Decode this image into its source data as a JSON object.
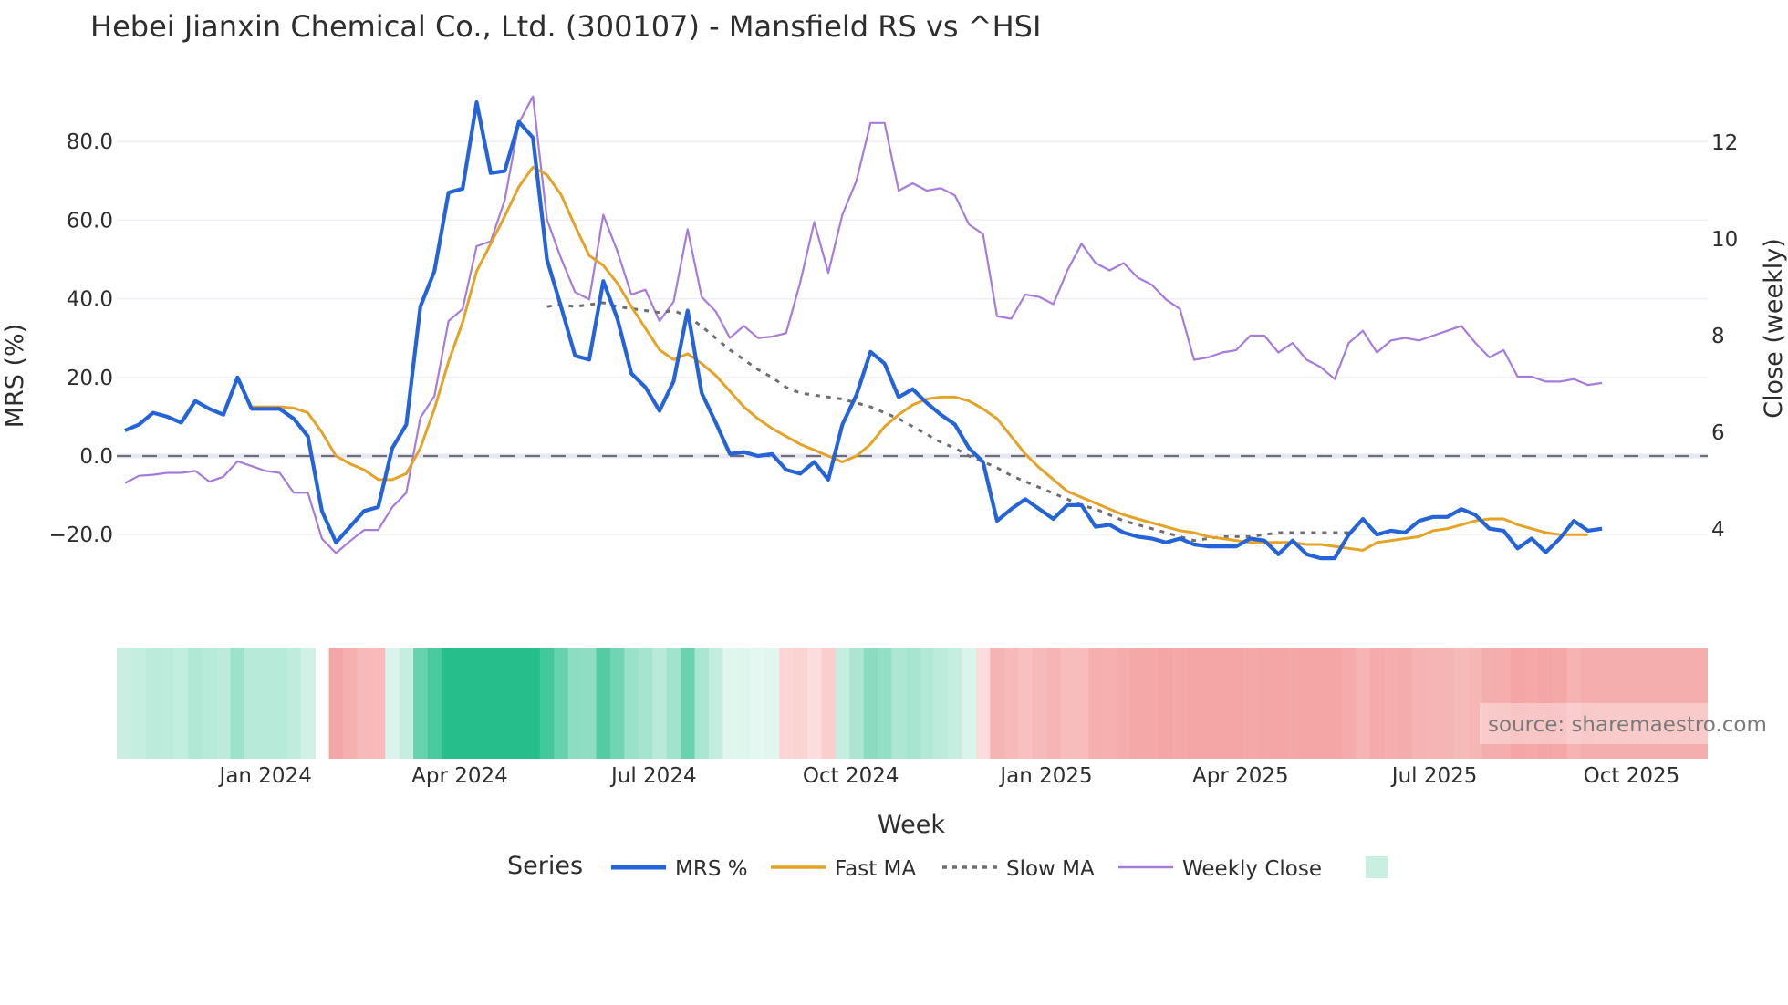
{
  "title": "Hebei Jianxin Chemical Co., Ltd. (300107) - Mansfield RS vs ^HSI",
  "y_left_title": "MRS (%)",
  "y_right_title": "Close (weekly)",
  "x_title": "Week",
  "legend": {
    "title": "Series",
    "items": [
      {
        "label": "MRS %",
        "color": "#2563d8",
        "style": "solid-thick"
      },
      {
        "label": "Fast MA",
        "color": "#e5a326",
        "style": "solid"
      },
      {
        "label": "Slow MA",
        "color": "#6e6e6e",
        "style": "dotted"
      },
      {
        "label": "Weekly Close",
        "color": "#a77bdb",
        "style": "solid-thin"
      },
      {
        "label": "",
        "color": "#c9efe0",
        "style": "swatch"
      }
    ]
  },
  "source": "source: sharemaestro.com",
  "colors": {
    "mrs": "#2563d8",
    "fast": "#e5a326",
    "slow": "#6e6e6e",
    "close": "#a77bdb",
    "zero": "#6e6e7a",
    "grid": "#eceef3",
    "pos": "#26bf8c",
    "neg": "#f4a6a6"
  },
  "chart_data": {
    "type": "line",
    "title": "Hebei Jianxin Chemical Co., Ltd. (300107) - Mansfield RS vs ^HSI",
    "xlabel": "Week",
    "ylabel": "MRS (%)",
    "ylabel_right": "Close (weekly)",
    "ylim": [
      -30,
      92
    ],
    "ylim_right": [
      3.2,
      13.2
    ],
    "y_ticks": [
      "−20.0",
      "0.0",
      "20.0",
      "40.0",
      "60.0",
      "80.0"
    ],
    "y_tick_values": [
      -20,
      0,
      20,
      40,
      60,
      80
    ],
    "y_right_ticks": [
      "4",
      "6",
      "8",
      "10",
      "12"
    ],
    "y_right_tick_values": [
      4,
      6,
      8,
      10,
      12
    ],
    "x_ticks": [
      "Jan 2024",
      "Apr 2024",
      "Jul 2024",
      "Oct 2024",
      "Jan 2025",
      "Apr 2025",
      "Jul 2025",
      "Oct 2025"
    ],
    "x_tick_index": [
      10.0,
      23.8,
      37.6,
      51.6,
      65.5,
      79.3,
      93.1,
      107.1
    ],
    "grid": true,
    "legend_position": "bottom",
    "zero_line": 0,
    "series": [
      {
        "name": "MRS %",
        "axis": "left",
        "values": [
          6.5,
          8,
          11,
          10,
          8.5,
          14,
          12,
          10.5,
          20,
          12,
          12,
          12,
          9.5,
          5,
          -14,
          -22,
          -18,
          -14,
          -13,
          2,
          8,
          38,
          47,
          67,
          68,
          90,
          72,
          72.5,
          85,
          81,
          50,
          38,
          25.5,
          24.5,
          44.5,
          35,
          21,
          17.5,
          11.5,
          19,
          37,
          16,
          8.5,
          0.5,
          1,
          0,
          0.5,
          -3.5,
          -4.5,
          -1.5,
          -6,
          8,
          15.5,
          26.5,
          23.5,
          15,
          17,
          13.5,
          10.5,
          8,
          2,
          -1.5,
          -16.5,
          -13.5,
          -11,
          -13.5,
          -16,
          -12.5,
          -12.5,
          -18,
          -17.5,
          -19.5,
          -20.5,
          -21,
          -22,
          -21,
          -22.5,
          -23,
          -23,
          -23,
          -21,
          -21.5,
          -25,
          -21.5,
          -25,
          -26,
          -26,
          -20,
          -16,
          -20,
          -19,
          -19.5,
          -16.5,
          -15.5,
          -15.5,
          -13.5,
          -15,
          -18.5,
          -19,
          -23.5,
          -21,
          -24.5,
          -21,
          -16.5,
          -19,
          -18.5
        ]
      },
      {
        "name": "Fast MA",
        "axis": "left",
        "start_index": 9,
        "values": [
          12.5,
          12.5,
          12.5,
          12.2,
          11,
          6,
          0,
          -2,
          -3.5,
          -6,
          -6,
          -4.5,
          2,
          12,
          24,
          34,
          47,
          54,
          61,
          68.5,
          73.5,
          71.5,
          66.5,
          58.5,
          51,
          48.5,
          44,
          38,
          32.5,
          27,
          24.5,
          26,
          23.5,
          20.5,
          16.5,
          12.5,
          9.5,
          7,
          5,
          3,
          1.5,
          0,
          -1.5,
          0,
          3,
          7.5,
          10.5,
          13,
          14.5,
          15,
          15,
          14,
          12,
          9.5,
          5,
          0.5,
          -3,
          -6,
          -9,
          -10.5,
          -12,
          -13.5,
          -15,
          -16,
          -17,
          -18,
          -19,
          -19.5,
          -20.5,
          -21,
          -21.5,
          -22,
          -22,
          -22,
          -22,
          -22.5,
          -22.5,
          -23,
          -23.5,
          -24,
          -22,
          -21.5,
          -21,
          -20.5,
          -19,
          -18.5,
          -17.5,
          -16.5,
          -16,
          -16,
          -17.5,
          -18.5,
          -19.5,
          -20,
          -20,
          -20
        ]
      },
      {
        "name": "Slow MA",
        "axis": "left",
        "start_index": 30,
        "values": [
          38,
          38.5,
          38,
          38.5,
          39,
          38,
          37.5,
          37,
          36.5,
          37,
          35.5,
          33,
          30,
          27,
          24.5,
          22,
          20,
          17.5,
          16,
          15.5,
          15,
          14.5,
          13.5,
          12.5,
          11,
          9.5,
          7.5,
          5.5,
          3.5,
          2,
          0,
          -1.5,
          -3,
          -5,
          -6.5,
          -8,
          -9.5,
          -11,
          -12.5,
          -13.5,
          -15,
          -16.5,
          -17.5,
          -18.5,
          -19.5,
          -20.5,
          -21.5,
          -21,
          -20.5,
          -20.5,
          -20.5,
          -20,
          -19.5,
          -19.5,
          -19.5,
          -19.5,
          -19.5,
          -19.5
        ]
      },
      {
        "name": "Weekly Close",
        "axis": "right",
        "values": [
          4.95,
          5.1,
          5.12,
          5.16,
          5.16,
          5.2,
          4.98,
          5.08,
          5.4,
          5.3,
          5.2,
          5.16,
          4.75,
          4.75,
          3.8,
          3.5,
          3.75,
          3.98,
          3.98,
          4.45,
          4.75,
          6.3,
          6.75,
          8.3,
          8.55,
          9.85,
          9.95,
          10.8,
          12.4,
          12.95,
          10.4,
          9.6,
          8.9,
          8.75,
          10.5,
          9.75,
          8.85,
          8.95,
          8.3,
          8.7,
          10.2,
          8.8,
          8.5,
          7.95,
          8.2,
          7.95,
          7.98,
          8.05,
          9.1,
          10.35,
          9.3,
          10.5,
          11.2,
          12.4,
          12.4,
          11,
          11.15,
          11,
          11.05,
          10.9,
          10.3,
          10.1,
          8.4,
          8.35,
          8.85,
          8.8,
          8.65,
          9.35,
          9.9,
          9.5,
          9.35,
          9.5,
          9.2,
          9.05,
          8.75,
          8.55,
          7.5,
          7.55,
          7.65,
          7.7,
          8.0,
          8.0,
          7.65,
          7.85,
          7.5,
          7.35,
          7.1,
          7.85,
          8.1,
          7.65,
          7.9,
          7.95,
          7.9,
          8.0,
          8.1,
          8.2,
          7.85,
          7.55,
          7.7,
          7.15,
          7.15,
          7.05,
          7.05,
          7.1,
          6.98,
          7.02
        ]
      }
    ],
    "heatmap": {
      "description": "MRS strength band below the main plot; green = positive MRS, red = negative MRS, intensity by magnitude",
      "gap_index": 14
    }
  }
}
